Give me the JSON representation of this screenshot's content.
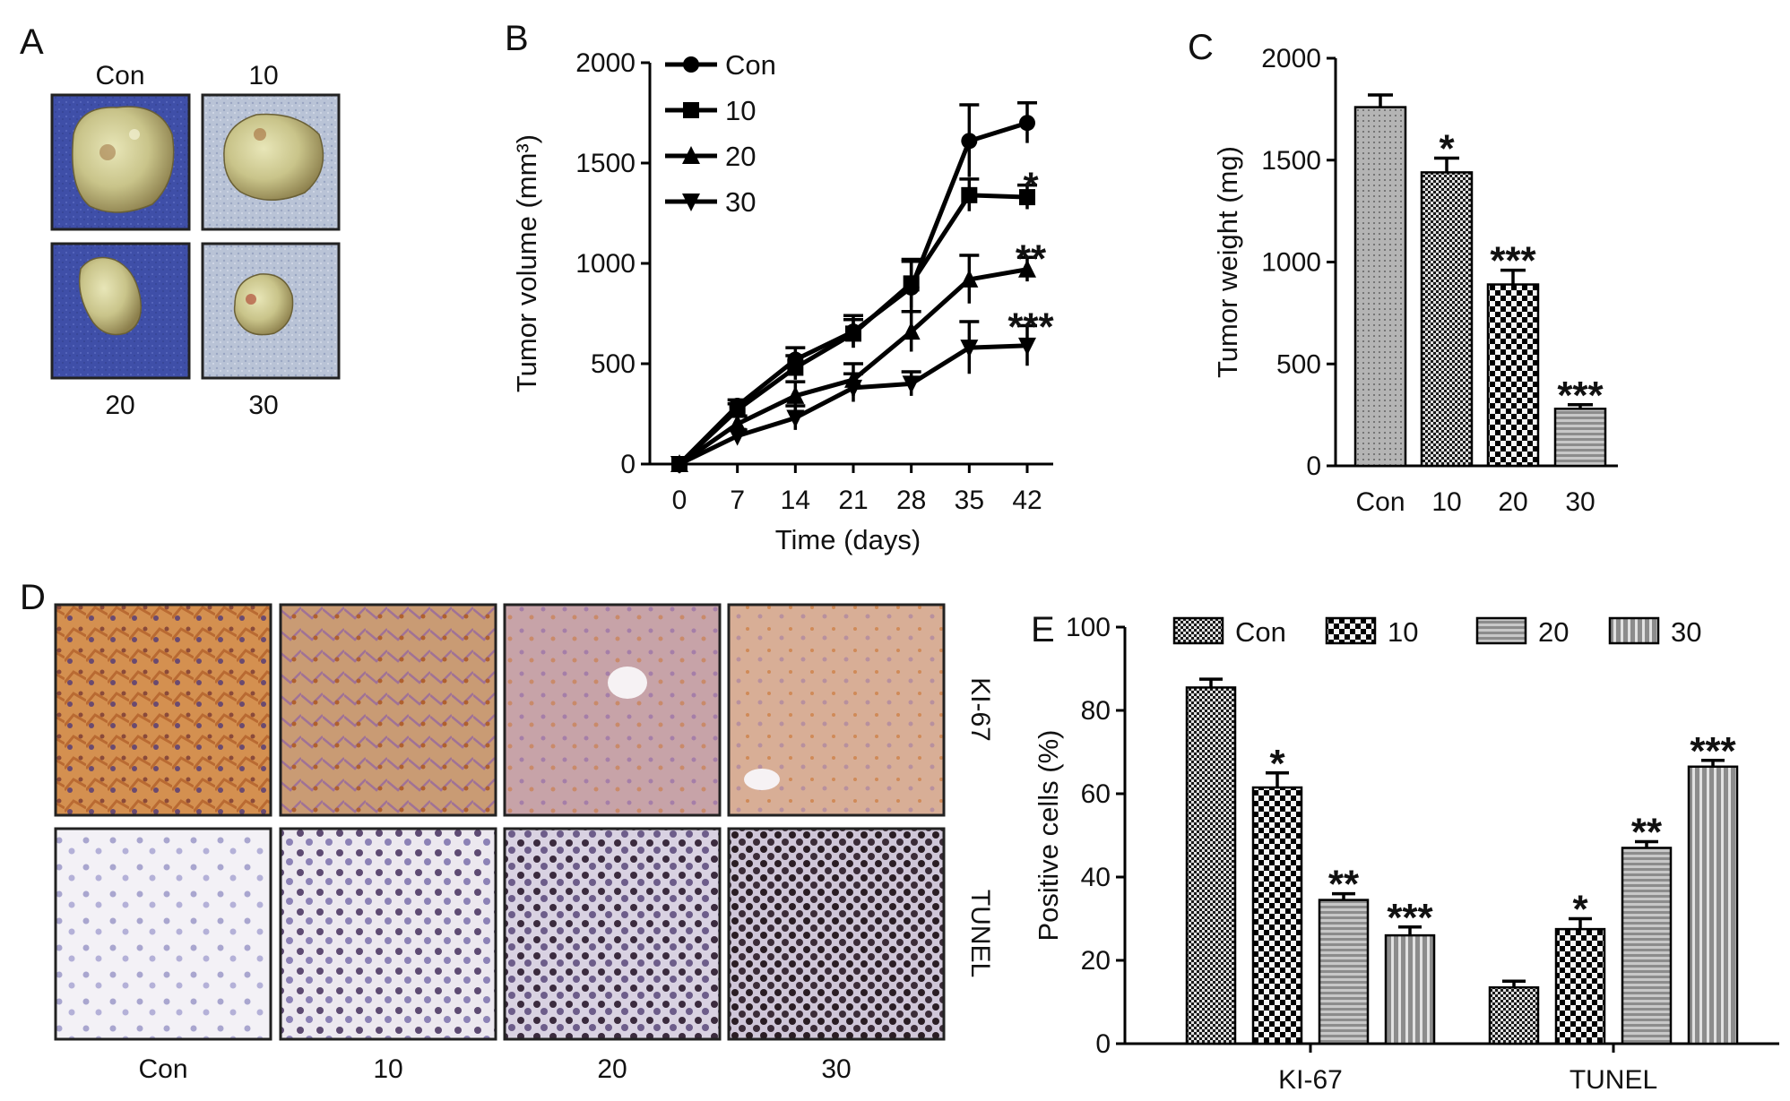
{
  "panels": {
    "A": {
      "label": "A",
      "groups": [
        "Con",
        "10",
        "20",
        "30"
      ]
    },
    "D": {
      "label": "D",
      "groups": [
        "Con",
        "10",
        "20",
        "30"
      ],
      "rows": [
        "KI-67",
        "TUNEL"
      ]
    },
    "B": {
      "label": "B"
    },
    "C": {
      "label": "C"
    },
    "E": {
      "label": "E"
    }
  },
  "chart_data": [
    {
      "id": "B",
      "type": "line",
      "xlabel": "Time (days)",
      "ylabel": "Tumor volume (mm³)",
      "x": [
        0,
        7,
        14,
        21,
        28,
        35,
        42
      ],
      "ylim": [
        0,
        2000
      ],
      "yticks": [
        0,
        500,
        1000,
        1500,
        2000
      ],
      "legend_position": "top-left",
      "series": [
        {
          "name": "Con",
          "marker": "circle",
          "values": [
            0,
            290,
            520,
            660,
            880,
            1610,
            1700
          ],
          "errors": [
            0,
            30,
            60,
            80,
            130,
            180,
            100
          ],
          "annotation": ""
        },
        {
          "name": "10",
          "marker": "square",
          "values": [
            0,
            270,
            480,
            650,
            900,
            1340,
            1330
          ],
          "errors": [
            0,
            30,
            60,
            70,
            120,
            80,
            60
          ],
          "annotation": "*"
        },
        {
          "name": "20",
          "marker": "triangle-up",
          "values": [
            0,
            200,
            340,
            420,
            660,
            920,
            970
          ],
          "errors": [
            0,
            40,
            70,
            80,
            100,
            120,
            60
          ],
          "annotation": "**"
        },
        {
          "name": "30",
          "marker": "triangle-down",
          "values": [
            0,
            140,
            230,
            380,
            400,
            580,
            590
          ],
          "errors": [
            0,
            30,
            60,
            70,
            60,
            130,
            100
          ],
          "annotation": "***"
        }
      ]
    },
    {
      "id": "C",
      "type": "bar",
      "xlabel": "",
      "ylabel": "Tumor weight (mg)",
      "categories": [
        "Con",
        "10",
        "20",
        "30"
      ],
      "values": [
        1760,
        1440,
        890,
        280
      ],
      "errors": [
        60,
        70,
        70,
        20
      ],
      "annotations": [
        "",
        "*",
        "***",
        "***"
      ],
      "ylim": [
        0,
        2000
      ],
      "yticks": [
        0,
        500,
        1000,
        1500,
        2000
      ]
    },
    {
      "id": "E",
      "type": "bar",
      "xlabel": "",
      "ylabel": "Positive cells (%)",
      "categories": [
        "KI-67",
        "TUNEL"
      ],
      "ylim": [
        0,
        100
      ],
      "yticks": [
        0,
        20,
        40,
        60,
        80,
        100
      ],
      "legend_position": "top",
      "series": [
        {
          "name": "Con",
          "pattern": "checker-fine",
          "values": [
            85.5,
            13.5
          ],
          "errors": [
            2,
            1.5
          ],
          "annotations": [
            "",
            ""
          ]
        },
        {
          "name": "10",
          "pattern": "checker-bold",
          "values": [
            61.5,
            27.5
          ],
          "errors": [
            3.5,
            2.5
          ],
          "annotations": [
            "*",
            "*"
          ]
        },
        {
          "name": "20",
          "pattern": "horizontal-stripes",
          "values": [
            34.5,
            47
          ],
          "errors": [
            1.5,
            1.5
          ],
          "annotations": [
            "**",
            "**"
          ]
        },
        {
          "name": "30",
          "pattern": "vertical-stripes",
          "values": [
            26,
            66.5
          ],
          "errors": [
            2,
            1.5
          ],
          "annotations": [
            "***",
            "***"
          ]
        }
      ]
    }
  ]
}
